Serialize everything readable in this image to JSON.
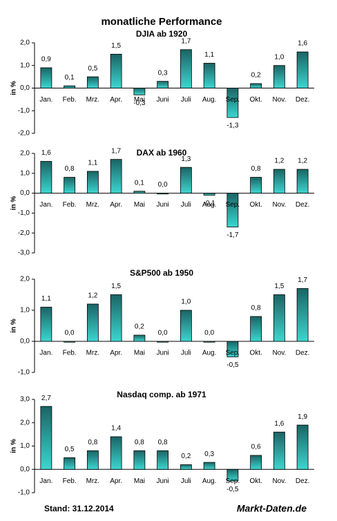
{
  "title": "monatliche Performance",
  "footer": {
    "date": "Stand: 31.12.2014",
    "source": "Markt-Daten.de"
  },
  "chart_data": [
    {
      "type": "bar",
      "title": "DJIA ab 1920",
      "y_label": "in %",
      "color": "#3cd6d0",
      "categories": [
        "Jan.",
        "Feb.",
        "Mrz.",
        "Apr.",
        "Mai",
        "Juni",
        "Juli",
        "Aug.",
        "Sep.",
        "Okt.",
        "Nov.",
        "Dez."
      ],
      "values": [
        0.9,
        0.1,
        0.5,
        1.5,
        -0.3,
        0.3,
        1.7,
        1.1,
        -1.3,
        0.2,
        1.0,
        1.6
      ],
      "value_labels": [
        "0,9",
        "0,1",
        "0,5",
        "1,5",
        "-0,3",
        "0,3",
        "1,7",
        "1,1",
        "-1,3",
        "0,2",
        "1,0",
        "1,6"
      ],
      "ylim": [
        -2,
        2
      ],
      "yticks": [
        {
          "value": -2,
          "label": "-2,0"
        },
        {
          "value": -1,
          "label": "-1,0"
        },
        {
          "value": 0,
          "label": "0,0"
        },
        {
          "value": 1,
          "label": "1,0"
        },
        {
          "value": 2,
          "label": "2,0"
        }
      ]
    },
    {
      "type": "bar",
      "title": "DAX ab 1960",
      "y_label": "in %",
      "color": "#3cd6d0",
      "categories": [
        "Jan.",
        "Feb.",
        "Mrz.",
        "Apr.",
        "Mai",
        "Juni",
        "Juli",
        "Aug.",
        "Sep.",
        "Okt.",
        "Nov.",
        "Dez."
      ],
      "values": [
        1.6,
        0.8,
        1.1,
        1.7,
        0.1,
        0.0,
        1.3,
        -0.1,
        -1.7,
        0.8,
        1.2,
        1.2
      ],
      "value_labels": [
        "1,6",
        "0,8",
        "1,1",
        "1,7",
        "0,1",
        "0,0",
        "1,3",
        "-0,1",
        "-1,7",
        "0,8",
        "1,2",
        "1,2"
      ],
      "ylim": [
        -3,
        2
      ],
      "yticks": [
        {
          "value": -3,
          "label": "-3,0"
        },
        {
          "value": -2,
          "label": "-2,0"
        },
        {
          "value": -1,
          "label": "-1,0"
        },
        {
          "value": 0,
          "label": "0,0"
        },
        {
          "value": 1,
          "label": "1,0"
        },
        {
          "value": 2,
          "label": "2,0"
        }
      ]
    },
    {
      "type": "bar",
      "title": "S&P500 ab 1950",
      "y_label": "in %",
      "color": "#3cd6d0",
      "categories": [
        "Jan.",
        "Feb.",
        "Mrz.",
        "Apr.",
        "Mai",
        "Juni",
        "Juli",
        "Aug.",
        "Sep.",
        "Okt.",
        "Nov.",
        "Dez."
      ],
      "values": [
        1.1,
        0.0,
        1.2,
        1.5,
        0.2,
        0.0,
        1.0,
        0.0,
        -0.5,
        0.8,
        1.5,
        1.7
      ],
      "value_labels": [
        "1,1",
        "0,0",
        "1,2",
        "1,5",
        "0,2",
        "0,0",
        "1,0",
        "0,0",
        "-0,5",
        "0,8",
        "1,5",
        "1,7"
      ],
      "ylim": [
        -1,
        2
      ],
      "yticks": [
        {
          "value": -1,
          "label": "-1,0"
        },
        {
          "value": 0,
          "label": "0,0"
        },
        {
          "value": 1,
          "label": "1,0"
        },
        {
          "value": 2,
          "label": "2,0"
        }
      ]
    },
    {
      "type": "bar",
      "title": "Nasdaq comp. ab 1971",
      "y_label": "in %",
      "color": "#3cd6d0",
      "categories": [
        "Jan.",
        "Feb.",
        "Mrz.",
        "Apr.",
        "Mai",
        "Juni",
        "Juli",
        "Aug.",
        "Sep.",
        "Okt.",
        "Nov.",
        "Dez."
      ],
      "values": [
        2.7,
        0.5,
        0.8,
        1.4,
        0.8,
        0.8,
        0.2,
        0.3,
        -0.5,
        0.6,
        1.6,
        1.9
      ],
      "value_labels": [
        "2,7",
        "0,5",
        "0,8",
        "1,4",
        "0,8",
        "0,8",
        "0,2",
        "0,3",
        "-0,5",
        "0,6",
        "1,6",
        "1,9"
      ],
      "ylim": [
        -1,
        3
      ],
      "yticks": [
        {
          "value": -1,
          "label": "-1,0"
        },
        {
          "value": 0,
          "label": "0,0"
        },
        {
          "value": 1,
          "label": "1,0"
        },
        {
          "value": 2,
          "label": "2,0"
        },
        {
          "value": 3,
          "label": "3,0"
        }
      ]
    }
  ]
}
